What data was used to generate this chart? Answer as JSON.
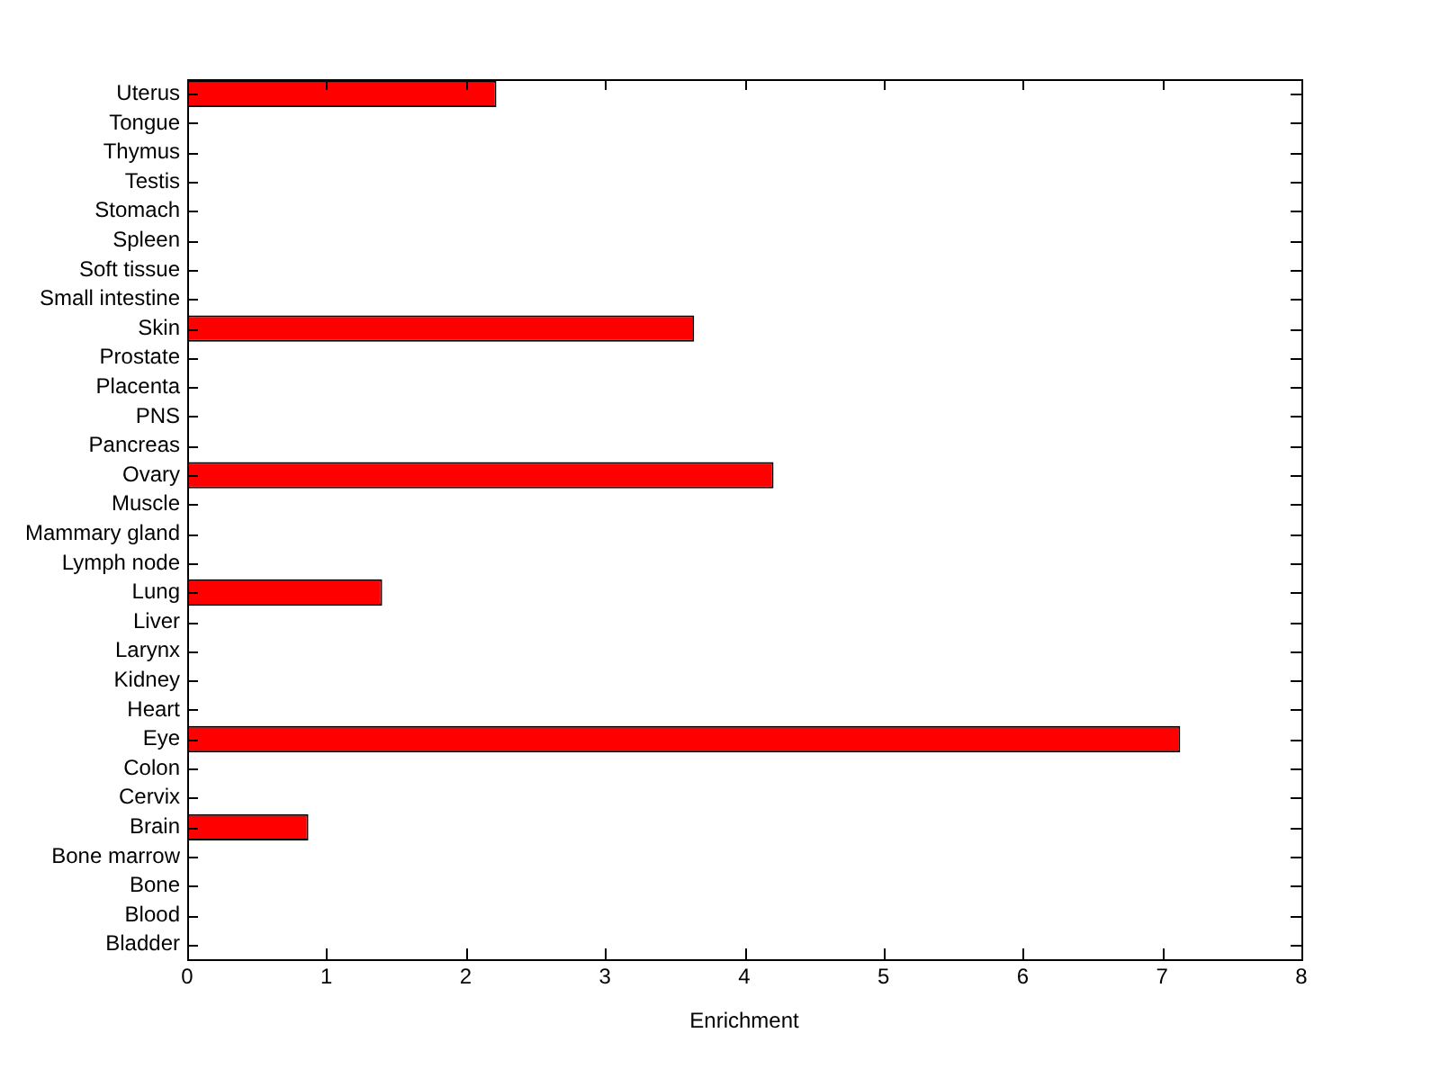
{
  "chart_data": {
    "type": "bar",
    "orientation": "horizontal",
    "xlabel": "Enrichment",
    "categories": [
      "Uterus",
      "Tongue",
      "Thymus",
      "Testis",
      "Stomach",
      "Spleen",
      "Soft tissue",
      "Small intestine",
      "Skin",
      "Prostate",
      "Placenta",
      "PNS",
      "Pancreas",
      "Ovary",
      "Muscle",
      "Mammary gland",
      "Lymph node",
      "Lung",
      "Liver",
      "Larynx",
      "Kidney",
      "Heart",
      "Eye",
      "Colon",
      "Cervix",
      "Brain",
      "Bone marrow",
      "Bone",
      "Blood",
      "Bladder"
    ],
    "values": [
      2.22,
      0,
      0,
      0,
      0,
      0,
      0,
      0,
      3.64,
      0,
      0,
      0,
      0,
      4.21,
      0,
      0,
      0,
      1.4,
      0,
      0,
      0,
      0,
      7.13,
      0,
      0,
      0.87,
      0,
      0,
      0,
      0
    ],
    "color": "#ff0000",
    "xlim": [
      0,
      8
    ],
    "xticks": [
      0,
      1,
      2,
      3,
      4,
      5,
      6,
      7,
      8
    ],
    "grid": false,
    "legend": false
  }
}
